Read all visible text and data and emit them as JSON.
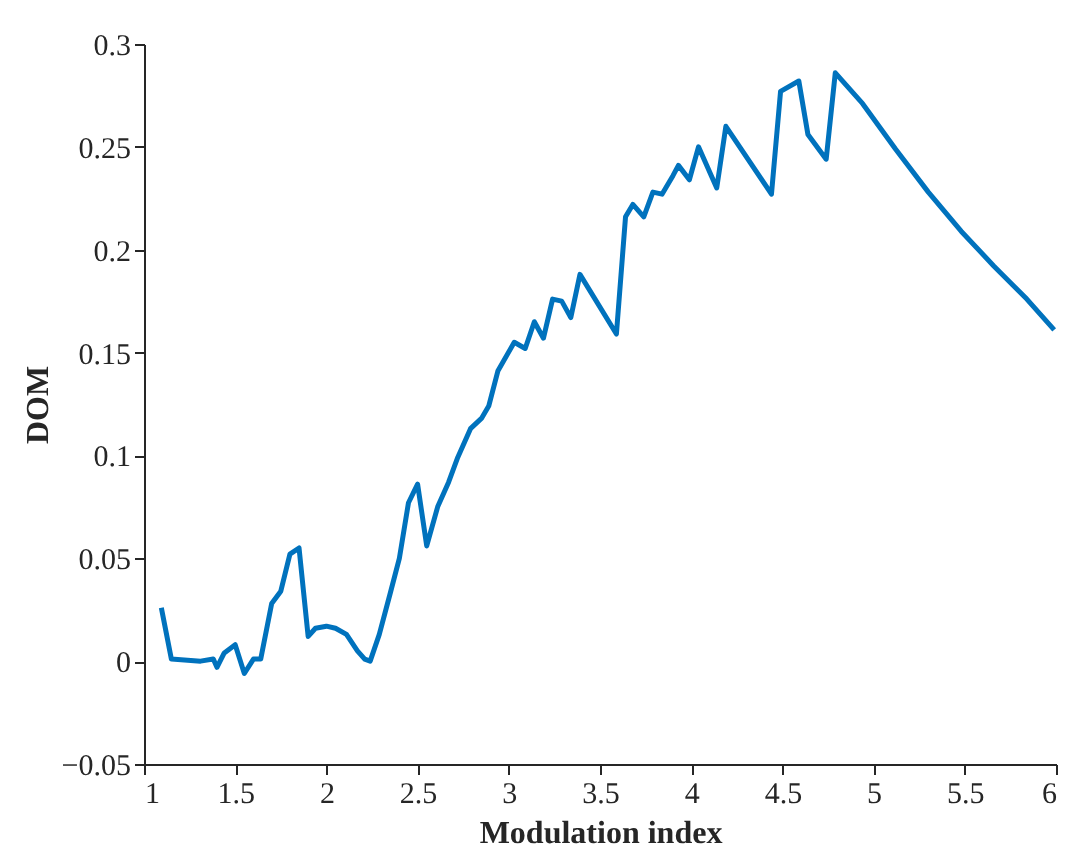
{
  "chart_data": {
    "type": "line",
    "xlabel": "Modulation index",
    "ylabel": "DOM",
    "xlim": [
      1,
      6
    ],
    "xticks": [
      1,
      1.5,
      2,
      2.5,
      3,
      3.5,
      4,
      4.5,
      5,
      5.5,
      6
    ],
    "ylim": [
      -0.05,
      0.3
    ],
    "yticks": [
      -0.05,
      0,
      0.05,
      0.1,
      0.15,
      0.2,
      0.25,
      0.3
    ],
    "grid": false,
    "marker": "none",
    "line_style": "solid",
    "series": [
      {
        "color": "#0072bd",
        "x": [
          1.095,
          1.15,
          1.31,
          1.38,
          1.4,
          1.44,
          1.5,
          1.55,
          1.6,
          1.64,
          1.7,
          1.75,
          1.8,
          1.85,
          1.9,
          1.94,
          2.0,
          2.05,
          2.11,
          2.17,
          2.21,
          2.24,
          2.29,
          2.35,
          2.4,
          2.45,
          2.5,
          2.55,
          2.61,
          2.67,
          2.72,
          2.79,
          2.85,
          2.89,
          2.94,
          3.03,
          3.09,
          3.14,
          3.19,
          3.24,
          3.29,
          3.34,
          3.39,
          3.59,
          3.64,
          3.68,
          3.74,
          3.79,
          3.84,
          3.9,
          3.93,
          3.99,
          4.04,
          4.14,
          4.19,
          4.44,
          4.49,
          4.59,
          4.64,
          4.74,
          4.79,
          4.94,
          5.12,
          5.3,
          5.48,
          5.66,
          5.84,
          5.99
        ],
        "values": [
          0.026,
          0.001,
          0,
          0.001,
          -0.003,
          0.004,
          0.008,
          -0.006,
          0.001,
          0.001,
          0.028,
          0.034,
          0.052,
          0.055,
          0.012,
          0.016,
          0.017,
          0.016,
          0.013,
          0.005,
          0.001,
          0,
          0.013,
          0.033,
          0.05,
          0.077,
          0.086,
          0.056,
          0.075,
          0.087,
          0.099,
          0.113,
          0.118,
          0.124,
          0.141,
          0.155,
          0.152,
          0.165,
          0.157,
          0.176,
          0.175,
          0.167,
          0.188,
          0.159,
          0.216,
          0.222,
          0.216,
          0.228,
          0.227,
          0.236,
          0.241,
          0.234,
          0.25,
          0.23,
          0.26,
          0.227,
          0.277,
          0.282,
          0.256,
          0.244,
          0.286,
          0.271,
          0.249,
          0.228,
          0.209,
          0.192,
          0.176,
          0.161
        ]
      }
    ]
  }
}
